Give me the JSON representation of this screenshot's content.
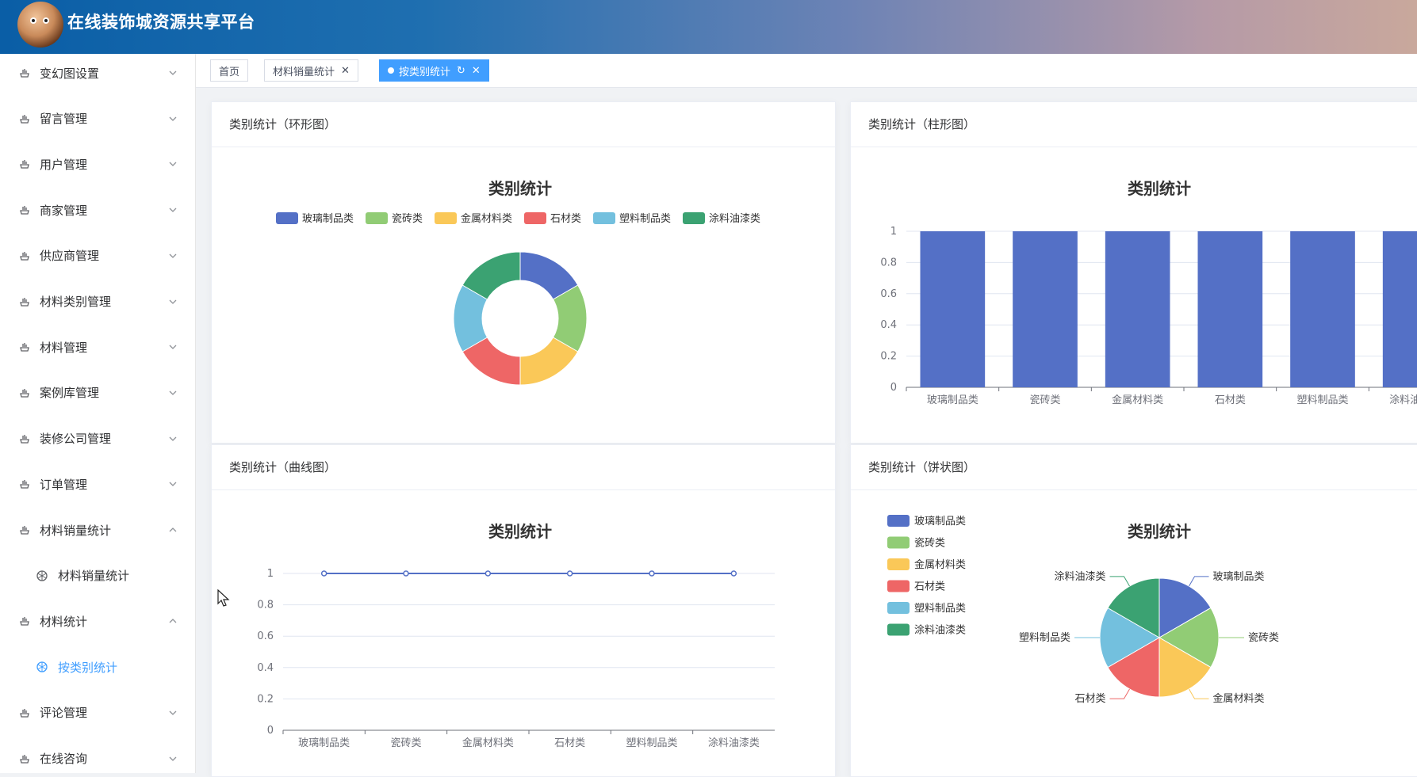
{
  "header": {
    "app_title": "在线装饰城资源共享平台"
  },
  "sidebar": {
    "items": [
      {
        "label": "变幻图设置",
        "expanded": false
      },
      {
        "label": "留言管理",
        "expanded": false
      },
      {
        "label": "用户管理",
        "expanded": false
      },
      {
        "label": "商家管理",
        "expanded": false
      },
      {
        "label": "供应商管理",
        "expanded": false
      },
      {
        "label": "材料类别管理",
        "expanded": false
      },
      {
        "label": "材料管理",
        "expanded": false
      },
      {
        "label": "案例库管理",
        "expanded": false
      },
      {
        "label": "装修公司管理",
        "expanded": false
      },
      {
        "label": "订单管理",
        "expanded": false
      },
      {
        "label": "材料销量统计",
        "expanded": true
      },
      {
        "label": "材料销量统计",
        "sub": true
      },
      {
        "label": "材料统计",
        "expanded": true
      },
      {
        "label": "按类别统计",
        "sub": true,
        "active": true
      },
      {
        "label": "评论管理",
        "expanded": false
      },
      {
        "label": "在线咨询",
        "expanded": false
      }
    ]
  },
  "tabs": [
    {
      "label": "首页",
      "closable": false,
      "active": false
    },
    {
      "label": "材料销量统计",
      "closable": true,
      "active": false
    },
    {
      "label": "按类别统计",
      "closable": true,
      "active": true
    }
  ],
  "colors": {
    "accent": "#409eff",
    "series": [
      "#5470c6",
      "#91cc75",
      "#fac858",
      "#ee6666",
      "#73c0de",
      "#3ba272"
    ]
  },
  "cards": {
    "donut": {
      "header": "类别统计（环形图）"
    },
    "bar": {
      "header": "类别统计（柱形图）"
    },
    "line": {
      "header": "类别统计（曲线图）"
    },
    "pie": {
      "header": "类别统计（饼状图）"
    }
  },
  "chart_data": [
    {
      "type": "pie",
      "variant": "donut",
      "title": "类别统计",
      "categories": [
        "玻璃制品类",
        "瓷砖类",
        "金属材料类",
        "石材类",
        "塑料制品类",
        "涂料油漆类"
      ],
      "values": [
        1,
        1,
        1,
        1,
        1,
        1
      ],
      "legend": "top"
    },
    {
      "type": "bar",
      "title": "类别统计",
      "categories": [
        "玻璃制品类",
        "瓷砖类",
        "金属材料类",
        "石材类",
        "塑料制品类",
        "涂料油漆类"
      ],
      "values": [
        1,
        1,
        1,
        1,
        1,
        1
      ],
      "yticks": [
        "0",
        "0.2",
        "0.4",
        "0.6",
        "0.8",
        "1"
      ],
      "ylim": [
        0,
        1
      ],
      "grid": true
    },
    {
      "type": "line",
      "title": "类别统计",
      "categories": [
        "玻璃制品类",
        "瓷砖类",
        "金属材料类",
        "石材类",
        "塑料制品类",
        "涂料油漆类"
      ],
      "values": [
        1,
        1,
        1,
        1,
        1,
        1
      ],
      "yticks": [
        "0",
        "0.2",
        "0.4",
        "0.6",
        "0.8",
        "1"
      ],
      "ylim": [
        0,
        1
      ],
      "grid": true
    },
    {
      "type": "pie",
      "title": "类别统计",
      "categories": [
        "玻璃制品类",
        "瓷砖类",
        "金属材料类",
        "石材类",
        "塑料制品类",
        "涂料油漆类"
      ],
      "values": [
        1,
        1,
        1,
        1,
        1,
        1
      ],
      "legend": "left"
    }
  ]
}
